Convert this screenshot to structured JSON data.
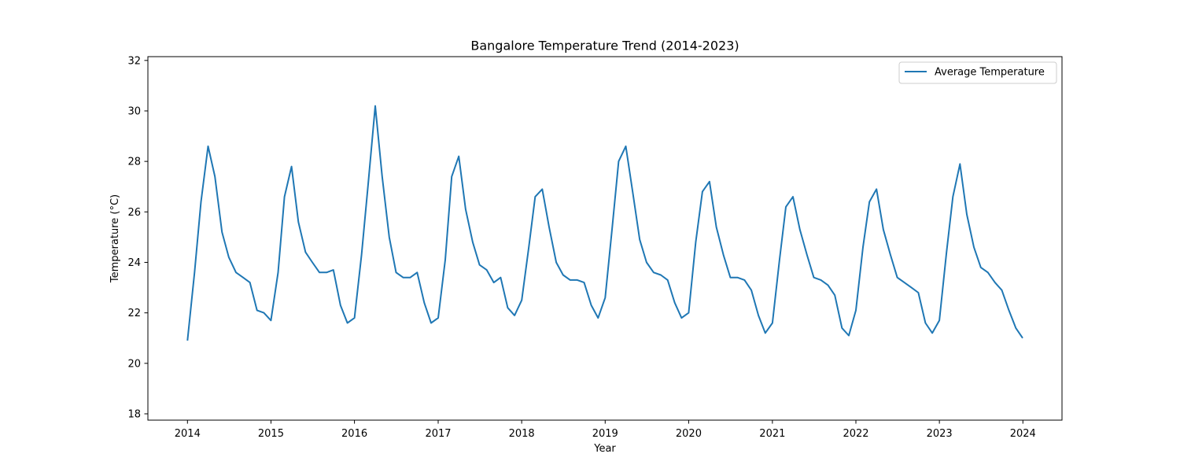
{
  "chart_data": {
    "type": "line",
    "title": "Bangalore Temperature Trend (2014-2023)",
    "xlabel": "Year",
    "ylabel": "Temperature (°C)",
    "xlim": [
      "2013-07-12",
      "2024-06-20"
    ],
    "ylim": [
      17.75,
      32.15
    ],
    "x_ticks": [
      "2014",
      "2015",
      "2016",
      "2017",
      "2018",
      "2019",
      "2020",
      "2021",
      "2022",
      "2023",
      "2024"
    ],
    "y_ticks": [
      "18",
      "20",
      "22",
      "24",
      "26",
      "28",
      "30",
      "32"
    ],
    "grid": false,
    "legend": {
      "position": "top-right",
      "entries": [
        "Average Temperature"
      ]
    },
    "series": [
      {
        "name": "Average Temperature",
        "color": "#1f77b4",
        "x": [
          "2014-01-01",
          "2014-02-01",
          "2014-03-01",
          "2014-04-01",
          "2014-05-01",
          "2014-06-01",
          "2014-07-01",
          "2014-08-01",
          "2014-09-01",
          "2014-10-01",
          "2014-11-01",
          "2014-12-01",
          "2015-01-01",
          "2015-02-01",
          "2015-03-01",
          "2015-04-01",
          "2015-05-01",
          "2015-06-01",
          "2015-07-01",
          "2015-08-01",
          "2015-09-01",
          "2015-10-01",
          "2015-11-01",
          "2015-12-01",
          "2016-01-01",
          "2016-02-01",
          "2016-03-01",
          "2016-04-01",
          "2016-05-01",
          "2016-06-01",
          "2016-07-01",
          "2016-08-01",
          "2016-09-01",
          "2016-10-01",
          "2016-11-01",
          "2016-12-01",
          "2017-01-01",
          "2017-02-01",
          "2017-03-01",
          "2017-04-01",
          "2017-05-01",
          "2017-06-01",
          "2017-07-01",
          "2017-08-01",
          "2017-09-01",
          "2017-10-01",
          "2017-11-01",
          "2017-12-01",
          "2018-01-01",
          "2018-02-01",
          "2018-03-01",
          "2018-04-01",
          "2018-05-01",
          "2018-06-01",
          "2018-07-01",
          "2018-08-01",
          "2018-09-01",
          "2018-10-01",
          "2018-11-01",
          "2018-12-01",
          "2019-01-01",
          "2019-02-01",
          "2019-03-01",
          "2019-04-01",
          "2019-05-01",
          "2019-06-01",
          "2019-07-01",
          "2019-08-01",
          "2019-09-01",
          "2019-10-01",
          "2019-11-01",
          "2019-12-01",
          "2020-01-01",
          "2020-02-01",
          "2020-03-01",
          "2020-04-01",
          "2020-05-01",
          "2020-06-01",
          "2020-07-01",
          "2020-08-01",
          "2020-09-01",
          "2020-10-01",
          "2020-11-01",
          "2020-12-01",
          "2021-01-01",
          "2021-02-01",
          "2021-03-01",
          "2021-04-01",
          "2021-05-01",
          "2021-06-01",
          "2021-07-01",
          "2021-08-01",
          "2021-09-01",
          "2021-10-01",
          "2021-11-01",
          "2021-12-01",
          "2022-01-01",
          "2022-02-01",
          "2022-03-01",
          "2022-04-01",
          "2022-05-01",
          "2022-06-01",
          "2022-07-01",
          "2022-08-01",
          "2022-09-01",
          "2022-10-01",
          "2022-11-01",
          "2022-12-01",
          "2023-01-01",
          "2023-02-01",
          "2023-03-01",
          "2023-04-01",
          "2023-05-01",
          "2023-06-01",
          "2023-07-01",
          "2023-08-01",
          "2023-09-01",
          "2023-10-01",
          "2023-11-01",
          "2023-12-01",
          "2023-12-31"
        ],
        "y": [
          20.9,
          23.6,
          26.4,
          28.6,
          27.4,
          25.2,
          24.2,
          23.6,
          23.4,
          23.2,
          22.1,
          22.0,
          21.7,
          23.6,
          26.6,
          27.8,
          25.6,
          24.4,
          24.0,
          23.6,
          23.6,
          23.7,
          22.3,
          21.6,
          21.8,
          24.3,
          27.1,
          30.2,
          27.4,
          25.0,
          23.6,
          23.4,
          23.4,
          23.6,
          22.4,
          21.6,
          21.8,
          24.1,
          27.4,
          28.2,
          26.1,
          24.8,
          23.9,
          23.7,
          23.2,
          23.4,
          22.2,
          21.9,
          22.5,
          24.6,
          26.6,
          26.9,
          25.4,
          24.0,
          23.5,
          23.3,
          23.3,
          23.2,
          22.3,
          21.8,
          22.6,
          25.4,
          28.0,
          28.6,
          26.8,
          24.9,
          24.0,
          23.6,
          23.5,
          23.3,
          22.4,
          21.8,
          22.0,
          24.8,
          26.8,
          27.2,
          25.4,
          24.3,
          23.4,
          23.4,
          23.3,
          22.9,
          21.9,
          21.2,
          21.6,
          24.1,
          26.2,
          26.6,
          25.3,
          24.3,
          23.4,
          23.3,
          23.1,
          22.7,
          21.4,
          21.1,
          22.1,
          24.6,
          26.4,
          26.9,
          25.3,
          24.3,
          23.4,
          23.2,
          23.0,
          22.8,
          21.6,
          21.2,
          21.7,
          24.4,
          26.6,
          27.9,
          25.9,
          24.6,
          23.8,
          23.6,
          23.2,
          22.9,
          22.1,
          21.4,
          21.0
        ]
      }
    ]
  }
}
